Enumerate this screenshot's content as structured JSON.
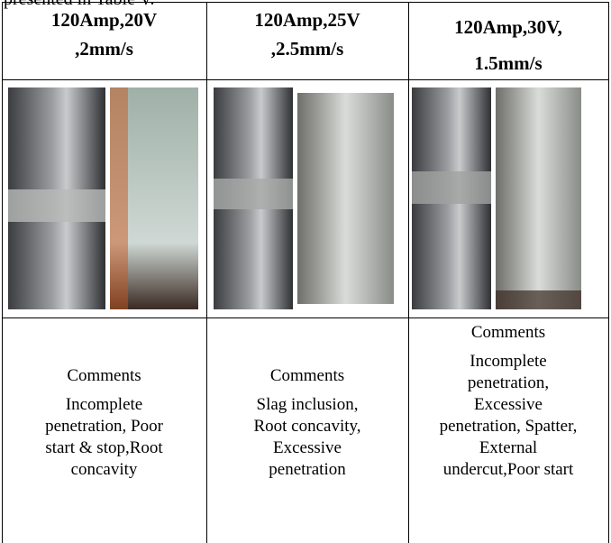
{
  "intro_text": "presented in Table V.",
  "table": {
    "headers": [
      [
        "120Amp,20V",
        ",2mm/s"
      ],
      [
        "120Amp,25V",
        ",2.5mm/s"
      ],
      [
        "120Amp,30V,",
        "1.5mm/s"
      ]
    ],
    "comments": [
      {
        "label": "Comments",
        "lines": [
          "Incomplete",
          "penetration, Poor",
          "start & stop,Root",
          "concavity"
        ]
      },
      {
        "label": "Comments",
        "lines": [
          "Slag inclusion,",
          "Root concavity,",
          "Excessive",
          "penetration"
        ]
      },
      {
        "label": "Comments",
        "lines": [
          "Incomplete",
          "penetration,",
          "Excessive",
          "penetration, Spatter,",
          "External",
          "undercut,Poor start"
        ]
      }
    ]
  }
}
